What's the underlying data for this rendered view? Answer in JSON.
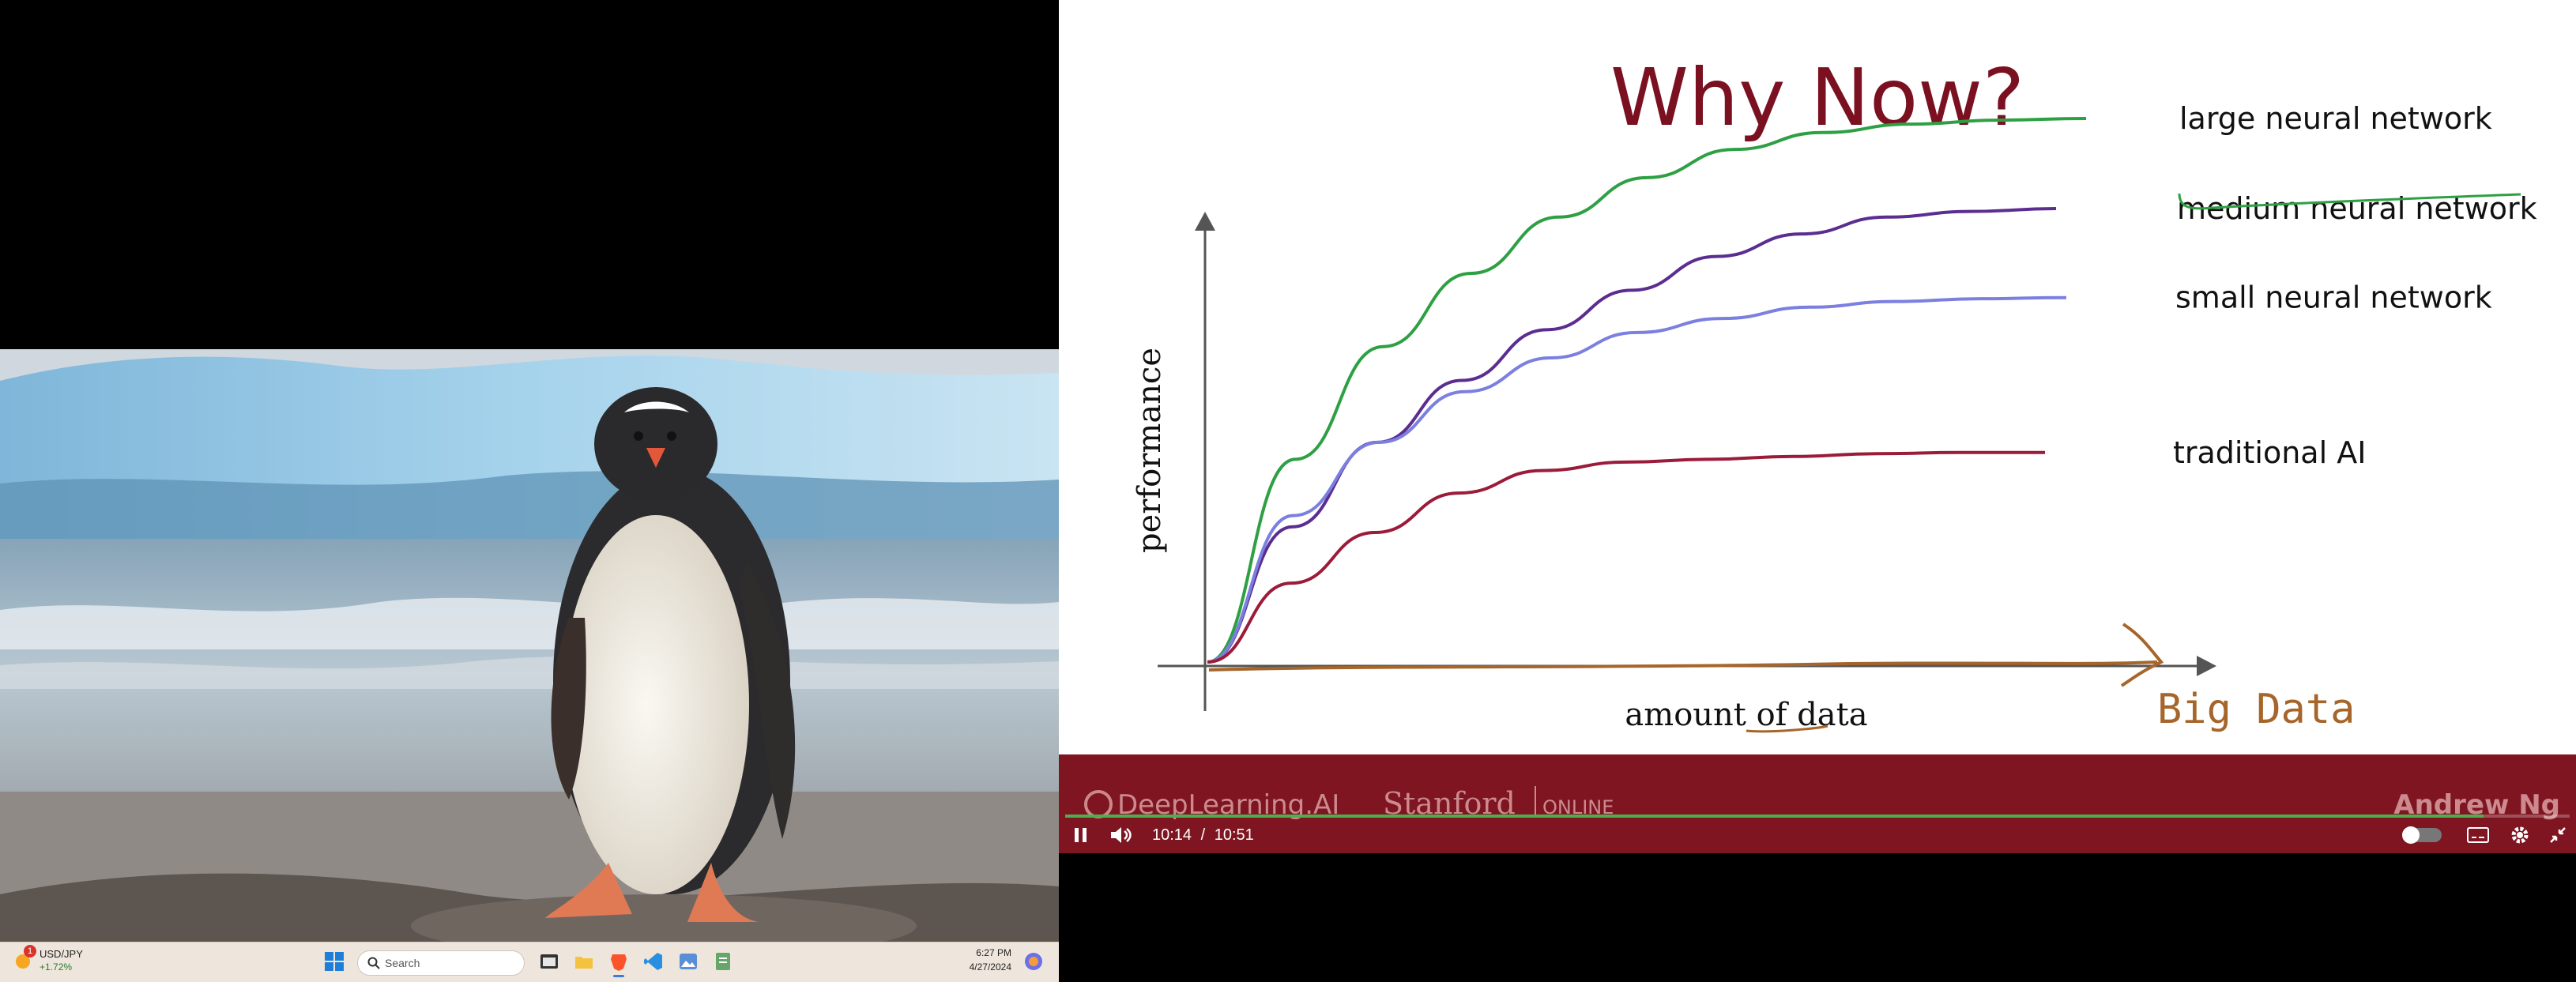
{
  "taskbar": {
    "widget_symbol": "USD/JPY",
    "widget_change": "+1.72%",
    "widget_badge": "1",
    "search_placeholder": "Search",
    "clock_time": "6:27 PM",
    "clock_date": "4/27/2024"
  },
  "slide": {
    "title": "Why Now?",
    "ylabel": "performance",
    "xlabel": "amount of data",
    "annotation": "Big Data",
    "footer_brand_left": "DeepLearning.AI",
    "footer_brand_center": "Stanford",
    "footer_brand_center_sub": "ONLINE",
    "footer_presenter": "Andrew Ng"
  },
  "chart_data": {
    "type": "line",
    "title": "Why Now?",
    "xlabel": "amount of data",
    "ylabel": "performance",
    "x": [
      0,
      1,
      2,
      3,
      4,
      5,
      6,
      7,
      8,
      9,
      10
    ],
    "series": [
      {
        "name": "large neural network",
        "color": "#2ea043",
        "values": [
          0,
          3.6,
          5.6,
          6.9,
          7.9,
          8.6,
          9.1,
          9.4,
          9.55,
          9.62,
          9.65
        ]
      },
      {
        "name": "medium neural network",
        "color": "#5b2d90",
        "values": [
          0,
          2.4,
          3.9,
          5.0,
          5.9,
          6.6,
          7.2,
          7.6,
          7.9,
          8.0,
          8.05
        ]
      },
      {
        "name": "small neural network",
        "color": "#7b7fe0",
        "values": [
          0,
          2.6,
          3.9,
          4.8,
          5.4,
          5.85,
          6.1,
          6.3,
          6.4,
          6.45,
          6.47
        ]
      },
      {
        "name": "traditional AI",
        "color": "#9b1b3a",
        "values": [
          0,
          1.4,
          2.3,
          3.0,
          3.4,
          3.55,
          3.6,
          3.65,
          3.7,
          3.72,
          3.72
        ]
      }
    ],
    "xlim": [
      0,
      10
    ],
    "ylim": [
      0,
      10
    ],
    "grid": false,
    "legend": "right"
  },
  "player": {
    "time_current": "10:14",
    "time_separator": "/",
    "time_total": "10:51",
    "progress": 0.943
  },
  "colors": {
    "slide_title": "#7a1020",
    "slide_footer": "#7e1521",
    "annotation": "#a6652a",
    "taskbar_bg": "#eee6dc"
  },
  "icons": [
    "weather-icon",
    "windows-start-icon",
    "search-icon",
    "file-explorer-icon",
    "brave-browser-icon",
    "vscode-icon",
    "photos-icon",
    "notepad-icon",
    "copilot-icon",
    "pause-icon",
    "volume-icon",
    "miniplayer-toggle-icon",
    "subtitles-icon",
    "settings-icon",
    "exit-fullscreen-icon"
  ]
}
